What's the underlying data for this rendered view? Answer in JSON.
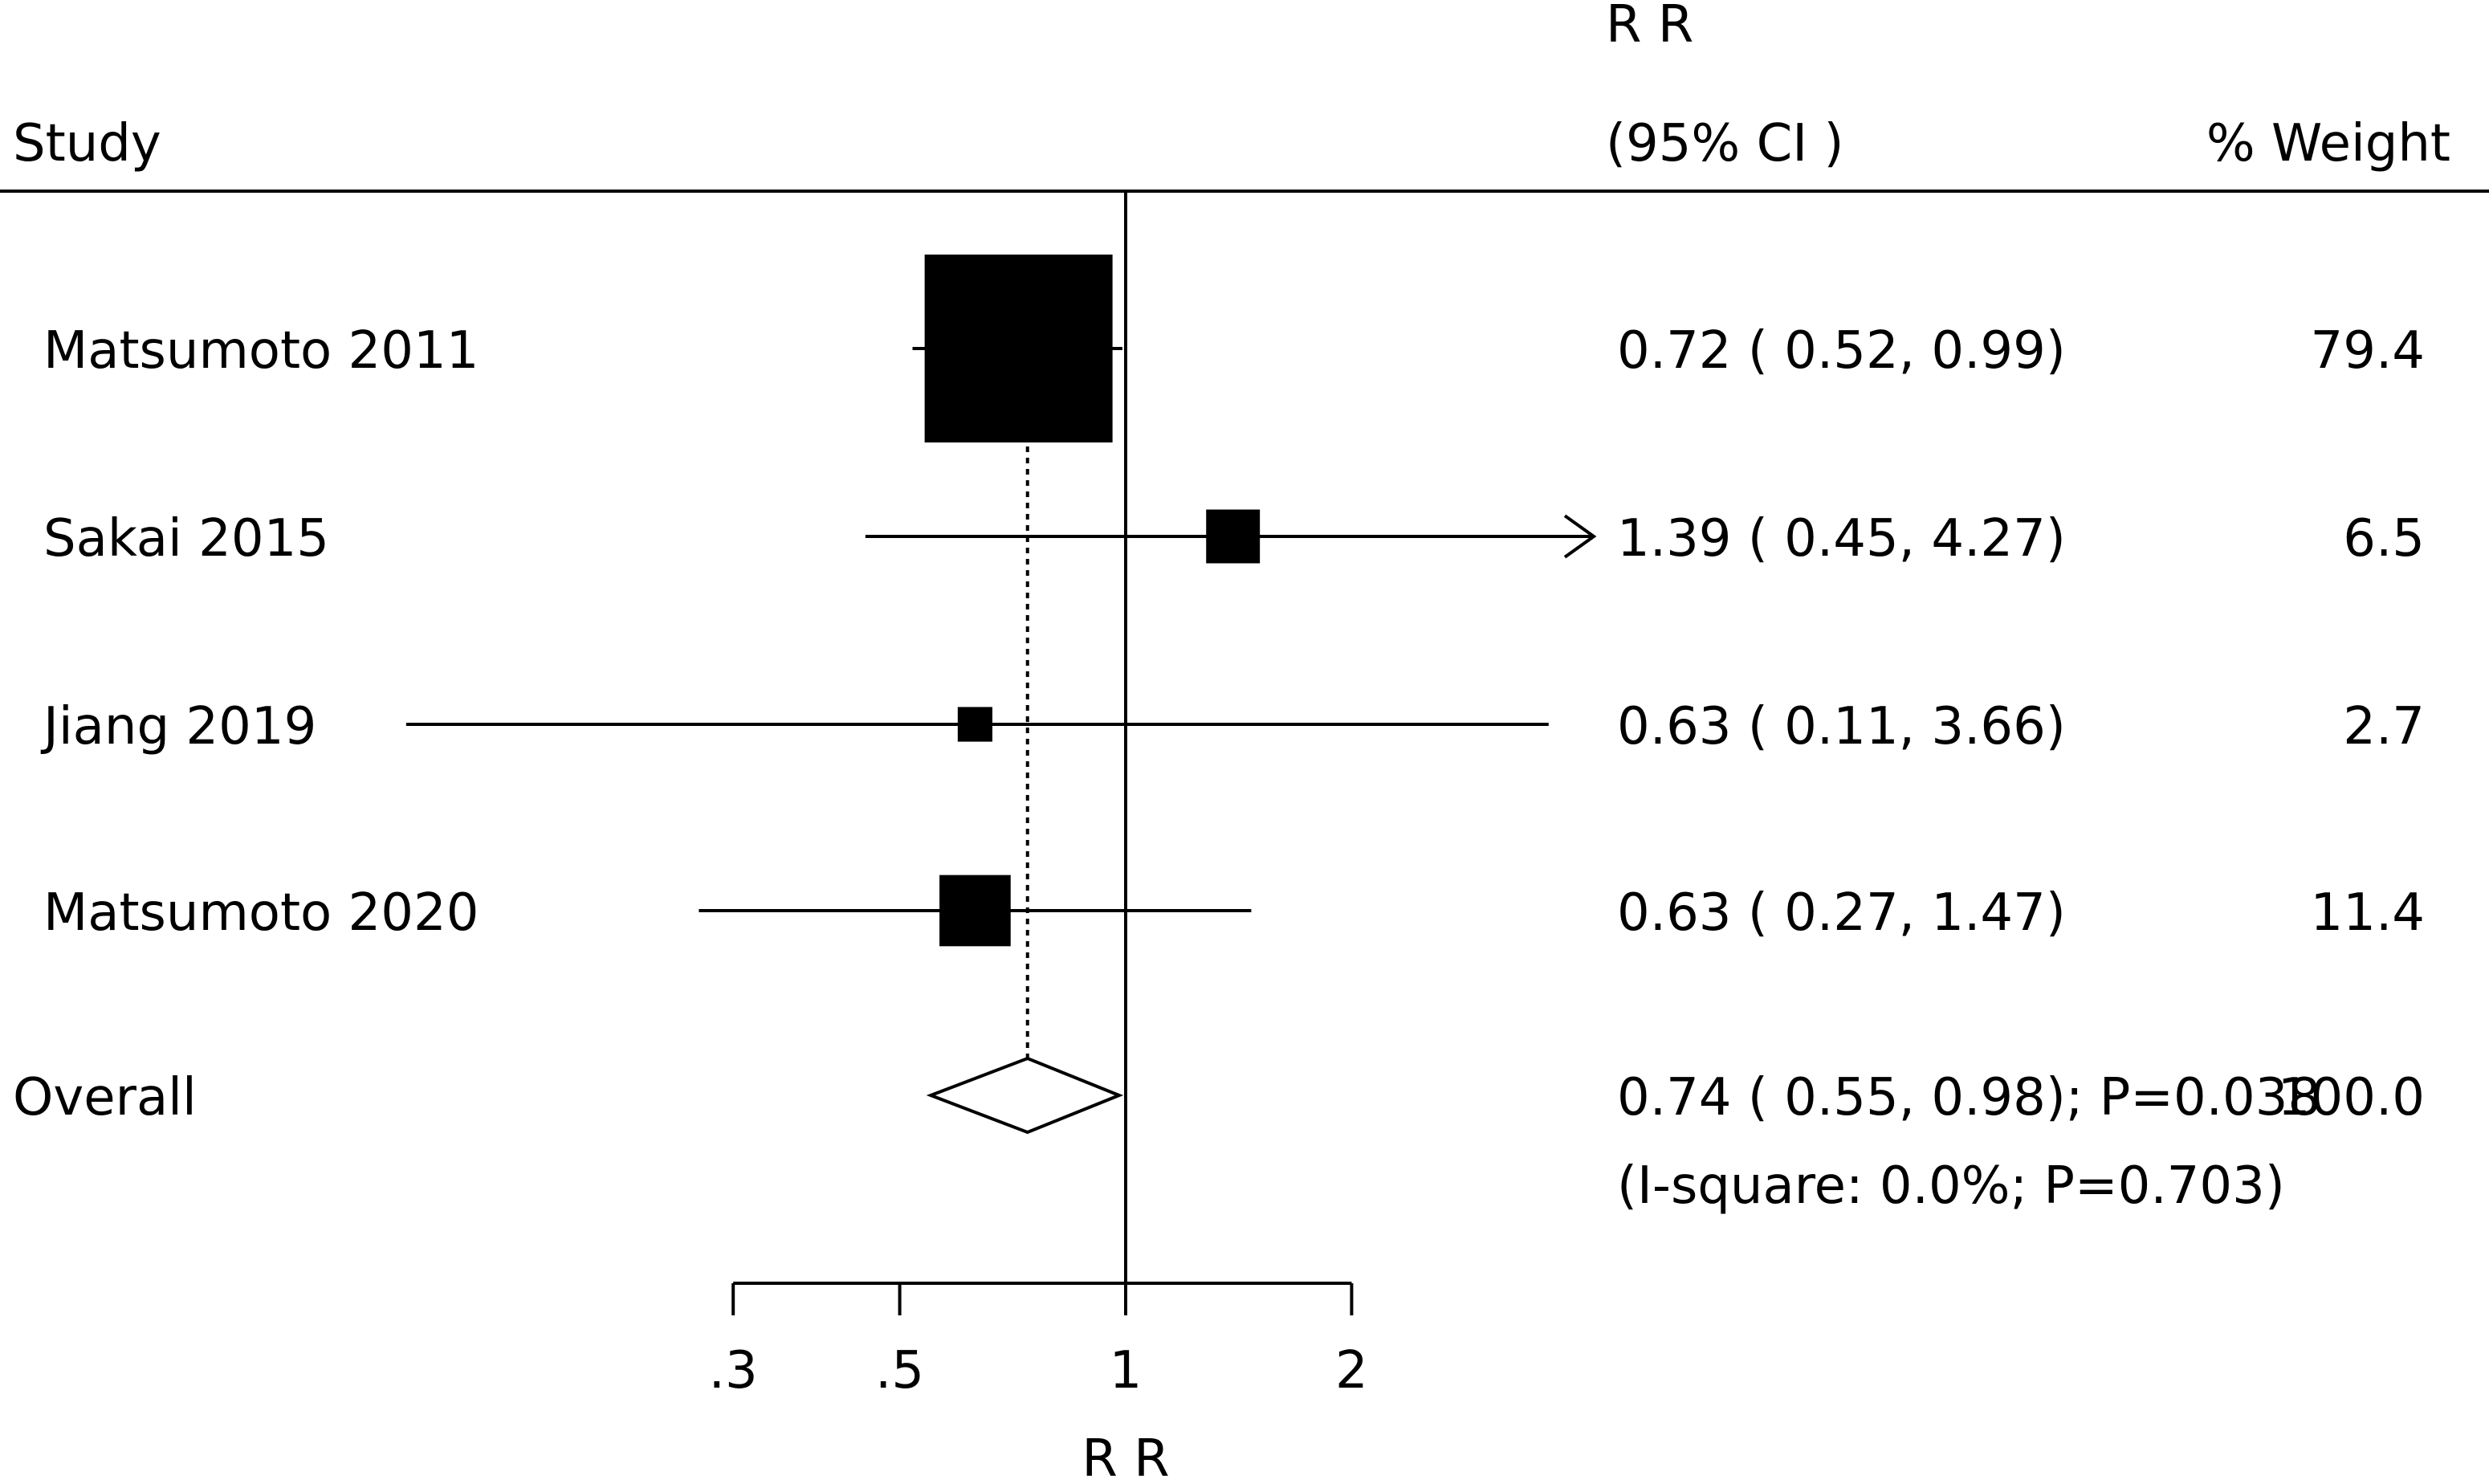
{
  "chart_data": {
    "type": "forest",
    "header": {
      "study": "Study",
      "rr": "R R",
      "ci": "(95% CI )",
      "weight": "% Weight"
    },
    "studies": [
      {
        "label": "Matsumoto 2011",
        "rr": 0.72,
        "lower": 0.52,
        "upper": 0.99,
        "estimate_text": "0.72 ( 0.52, 0.99)",
        "weight": 79.4,
        "weight_text": "79.4"
      },
      {
        "label": "Sakai 2015",
        "rr": 1.39,
        "lower": 0.45,
        "upper": 4.27,
        "estimate_text": "1.39 ( 0.45, 4.27)",
        "weight": 6.5,
        "weight_text": "6.5"
      },
      {
        "label": "Jiang 2019",
        "rr": 0.63,
        "lower": 0.11,
        "upper": 3.66,
        "estimate_text": "0.63 ( 0.11, 3.66)",
        "weight": 2.7,
        "weight_text": "2.7"
      },
      {
        "label": "Matsumoto 2020",
        "rr": 0.63,
        "lower": 0.27,
        "upper": 1.47,
        "estimate_text": "0.63 ( 0.27, 1.47)",
        "weight": 11.4,
        "weight_text": "11.4"
      }
    ],
    "overall": {
      "label": "Overall",
      "rr": 0.74,
      "lower": 0.55,
      "upper": 0.98,
      "estimate_text": "0.74 ( 0.55, 0.98); P=0.038",
      "heterogeneity_text": "(I-square: 0.0%; P=0.703)",
      "weight_text": "100.0"
    },
    "x_axis": {
      "label": "R R",
      "scale": "log",
      "xlim": [
        0.3,
        2.0
      ],
      "visible_range": [
        0.15,
        4.0
      ],
      "ticks": [
        0.3,
        0.5,
        1,
        2
      ],
      "tick_labels": [
        ".3",
        ".5",
        "1",
        "2"
      ],
      "reference_line": 1
    }
  }
}
